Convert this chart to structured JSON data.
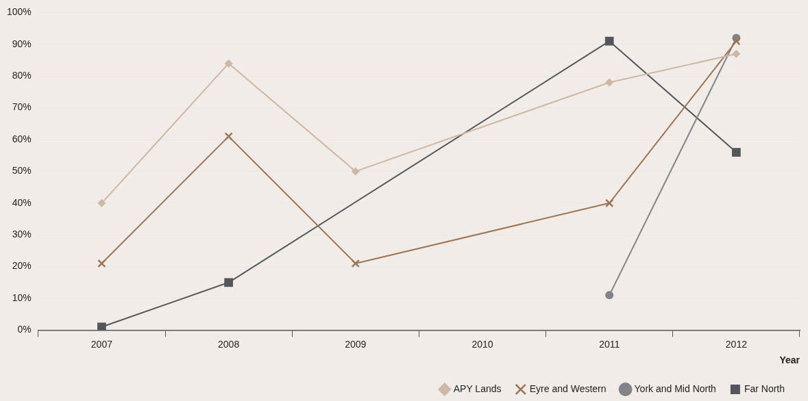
{
  "chart_data": {
    "type": "line",
    "xlabel": "Year",
    "categories": [
      "2007",
      "2008",
      "2009",
      "2010",
      "2011",
      "2012"
    ],
    "ylim": [
      0,
      100
    ],
    "yticks": [
      {
        "value": 0,
        "label": "0%"
      },
      {
        "value": 10,
        "label": "10%"
      },
      {
        "value": 20,
        "label": "20%"
      },
      {
        "value": 30,
        "label": "30%"
      },
      {
        "value": 40,
        "label": "40%"
      },
      {
        "value": 50,
        "label": "50%"
      },
      {
        "value": 60,
        "label": "60%"
      },
      {
        "value": 70,
        "label": "70%"
      },
      {
        "value": 80,
        "label": "80%"
      },
      {
        "value": 90,
        "label": "90%"
      },
      {
        "value": 100,
        "label": "100%"
      }
    ],
    "grid": "y",
    "legend": "bottom right",
    "line_style": "solid",
    "series": [
      {
        "name": "APY Lands",
        "color": "#cdb8a6",
        "marker": "diamond",
        "values": [
          40,
          84,
          50,
          null,
          78,
          87
        ]
      },
      {
        "name": "Eyre and Western",
        "color": "#9a7656",
        "marker": "cross",
        "values": [
          21,
          61,
          21,
          null,
          40,
          91
        ]
      },
      {
        "name": "York and Mid North",
        "color": "#818387",
        "marker": "circle",
        "values": [
          null,
          null,
          null,
          null,
          11,
          92
        ]
      },
      {
        "name": "Far North",
        "color": "#545659",
        "marker": "square",
        "values": [
          1,
          15,
          null,
          null,
          91,
          56
        ]
      }
    ]
  }
}
